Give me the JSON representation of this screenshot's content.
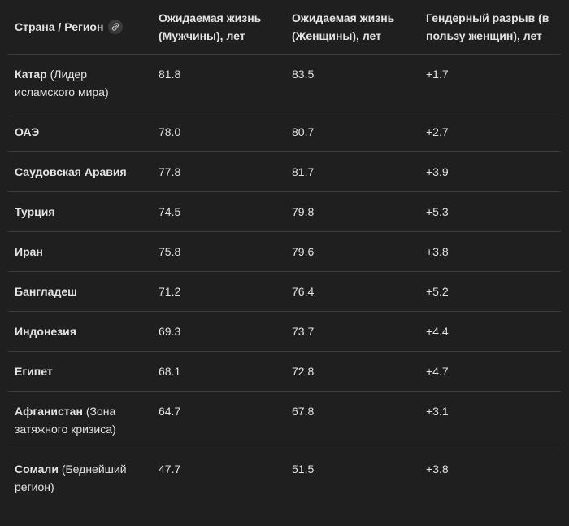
{
  "table": {
    "columns": [
      "Страна / Регион",
      "Ожидаемая жизнь (Мужчины), лет",
      "Ожидаемая жизнь (Женщины), лет",
      "Гендерный разрыв (в пользу женщин), лет"
    ],
    "rows": [
      {
        "country": "Катар",
        "note": "(Лидер исламского мира)",
        "male": "81.8",
        "female": "83.5",
        "gap": "+1.7"
      },
      {
        "country": "ОАЭ",
        "male": "78.0",
        "female": "80.7",
        "gap": "+2.7"
      },
      {
        "country": "Саудовская Аравия",
        "male": "77.8",
        "female": "81.7",
        "gap": "+3.9"
      },
      {
        "country": "Турция",
        "male": "74.5",
        "female": "79.8",
        "gap": "+5.3"
      },
      {
        "country": "Иран",
        "male": "75.8",
        "female": "79.6",
        "gap": "+3.8"
      },
      {
        "country": "Бангладеш",
        "male": "71.2",
        "female": "76.4",
        "gap": "+5.2"
      },
      {
        "country": "Индонезия",
        "male": "69.3",
        "female": "73.7",
        "gap": "+4.4"
      },
      {
        "country": "Египет",
        "male": "68.1",
        "female": "72.8",
        "gap": "+4.7"
      },
      {
        "country": "Афганистан",
        "note": "(Зона затяжного кризиса)",
        "male": "64.7",
        "female": "67.8",
        "gap": "+3.1"
      },
      {
        "country": "Сомали",
        "note": "(Беднейший регион)",
        "male": "47.7",
        "female": "51.5",
        "gap": "+3.8"
      }
    ]
  }
}
